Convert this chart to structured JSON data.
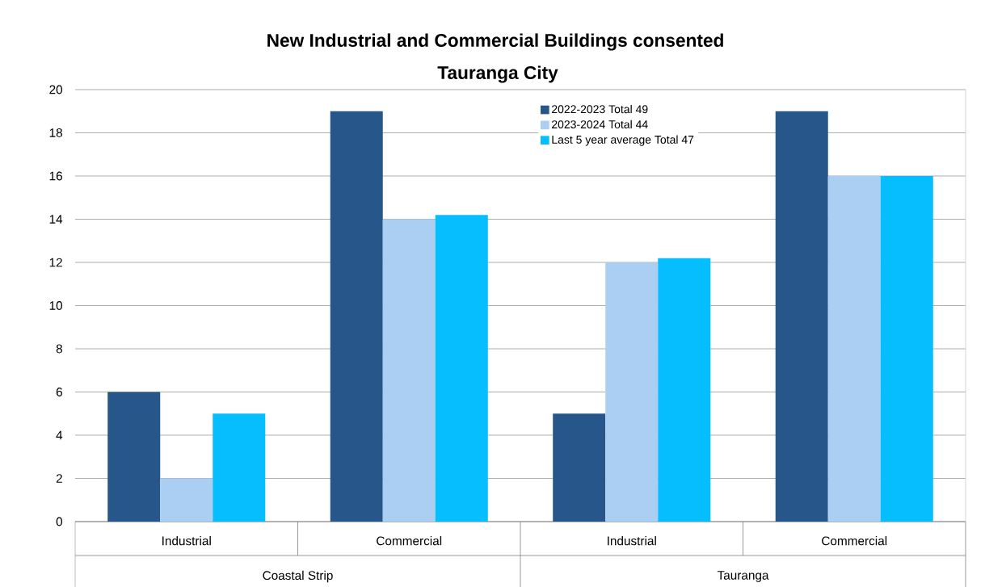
{
  "chart_data": {
    "type": "bar",
    "title": "New Industrial and Commercial Buildings consented",
    "subtitle": "Tauranga City",
    "categories": [
      "Industrial",
      "Commercial",
      "Industrial",
      "Commercial"
    ],
    "annotations": [
      "Coastal Strip",
      "Tauranga"
    ],
    "series": [
      {
        "name": "2022-2023  Total  49",
        "color": "#26568a",
        "values": [
          6,
          19,
          5,
          19
        ]
      },
      {
        "name": "2023-2024  Total  44",
        "color": "#aacff2",
        "values": [
          2,
          14,
          12,
          16
        ]
      },
      {
        "name": "Last 5 year average  Total  47",
        "color": "#06bdfd",
        "values": [
          5,
          14.2,
          12.2,
          16
        ]
      }
    ],
    "ylim": [
      0,
      20
    ],
    "yticks": [
      0,
      2,
      4,
      6,
      8,
      10,
      12,
      14,
      16,
      18,
      20
    ],
    "grid": "y",
    "legend": "top"
  }
}
